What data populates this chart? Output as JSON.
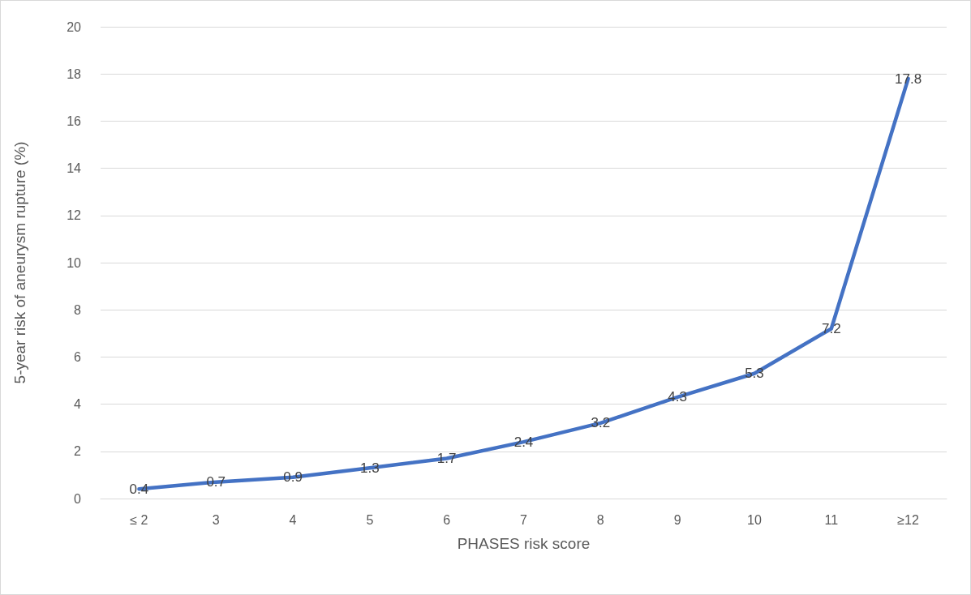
{
  "chart_data": {
    "type": "line",
    "xlabel": "PHASES risk score",
    "ylabel": "5-year risk of aneurysm rupture (%)",
    "categories": [
      "≤ 2",
      "3",
      "4",
      "5",
      "6",
      "7",
      "8",
      "9",
      "10",
      "11",
      "≥12"
    ],
    "series": [
      {
        "color": "#4472c4",
        "values": [
          0.4,
          0.7,
          0.9,
          1.3,
          1.7,
          2.4,
          3.2,
          4.3,
          5.3,
          7.2,
          17.8
        ]
      }
    ],
    "ylim": [
      0,
      20
    ],
    "yticks": [
      0,
      2,
      4,
      6,
      8,
      10,
      12,
      14,
      16,
      18,
      20
    ],
    "grid": "y",
    "data_labels": true,
    "marker": "none",
    "line_style": "solid"
  }
}
